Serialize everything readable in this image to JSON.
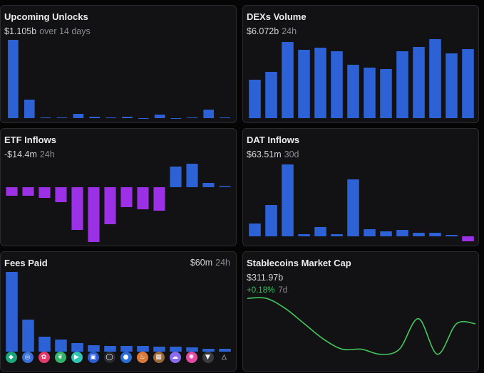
{
  "colors": {
    "bar_blue": "#2d62d7",
    "bar_purple": "#9c30e6",
    "line_green": "#42c85a",
    "bg": "#050505",
    "card": "#121215",
    "border": "#2a2b30",
    "muted": "#8a8b93"
  },
  "unlocks": {
    "title": "Upcoming Unlocks",
    "value": "$1.105b",
    "period": "over 14 days",
    "chart_data": {
      "type": "bar",
      "values": [
        110,
        26,
        1,
        1,
        6,
        2,
        1,
        2,
        0,
        5,
        0,
        1,
        12,
        1
      ]
    }
  },
  "dex": {
    "title": "DEXs Volume",
    "value": "$6.072b",
    "period": "24h",
    "chart_data": {
      "type": "bar",
      "values": [
        54,
        65,
        107,
        96,
        99,
        94,
        75,
        71,
        69,
        94,
        100,
        111,
        91,
        97
      ]
    }
  },
  "etf": {
    "title": "ETF Inflows",
    "value": "-$14.4m",
    "period": "24h",
    "chart_data": {
      "type": "bar",
      "values": [
        -12,
        -12,
        -15,
        -21,
        -60,
        -77,
        -52,
        -28,
        -31,
        -33,
        29,
        33,
        6,
        1.5
      ],
      "negative_color": "purple",
      "positive_color": "blue"
    }
  },
  "dat": {
    "title": "DAT Inflows",
    "value": "$63.51m",
    "period": "30d",
    "chart_data": {
      "type": "bar",
      "values": [
        18,
        44,
        101,
        3,
        13,
        3,
        80,
        10,
        7,
        9,
        5,
        5,
        2,
        -7
      ]
    }
  },
  "fees": {
    "title": "Fees Paid",
    "value": "$60m",
    "period": "24h",
    "chart_data": {
      "type": "bar",
      "values": [
        112,
        45,
        21,
        17,
        12,
        9,
        8,
        8,
        8,
        7,
        7,
        6,
        4,
        4
      ],
      "logos": [
        {
          "icon": "tether-logo-icon",
          "color": "#1aa57a"
        },
        {
          "icon": "circle-usdc-logo-icon",
          "color": "#3b6fd9"
        },
        {
          "icon": "pancake-logo-icon",
          "color": "#e23a6c"
        },
        {
          "icon": "leaf-logo-icon",
          "color": "#34b36a"
        },
        {
          "icon": "hyperliquid-logo-icon",
          "color": "#2dc5b3"
        },
        {
          "icon": "shield-logo-icon",
          "color": "#2b5dd6"
        },
        {
          "icon": "ring-logo-icon",
          "color": "#2a2b30"
        },
        {
          "icon": "coin-logo-icon",
          "color": "#2a6ed8"
        },
        {
          "icon": "flame-logo-icon",
          "color": "#d97a3a"
        },
        {
          "icon": "cube-logo-icon",
          "color": "#9a6a3c"
        },
        {
          "icon": "ghost-logo-icon",
          "color": "#8a6cf0"
        },
        {
          "icon": "swirl-logo-icon",
          "color": "#e24ba0"
        },
        {
          "icon": "shield-white-logo-icon",
          "color": "#3a3b40"
        },
        {
          "icon": "triangle-logo-icon",
          "color": "#121215"
        }
      ]
    }
  },
  "stable": {
    "title": "Stablecoins Market Cap",
    "value": "$311.97b",
    "change": "+0.18%",
    "period": "7d",
    "chart_data": {
      "type": "line",
      "x_count": 13,
      "values": [
        311.99,
        311.99,
        311.97,
        311.94,
        311.91,
        311.89,
        311.89,
        311.88,
        311.89,
        311.95,
        311.88,
        311.94,
        311.94
      ],
      "ylim": [
        311.86,
        312.0
      ]
    }
  }
}
